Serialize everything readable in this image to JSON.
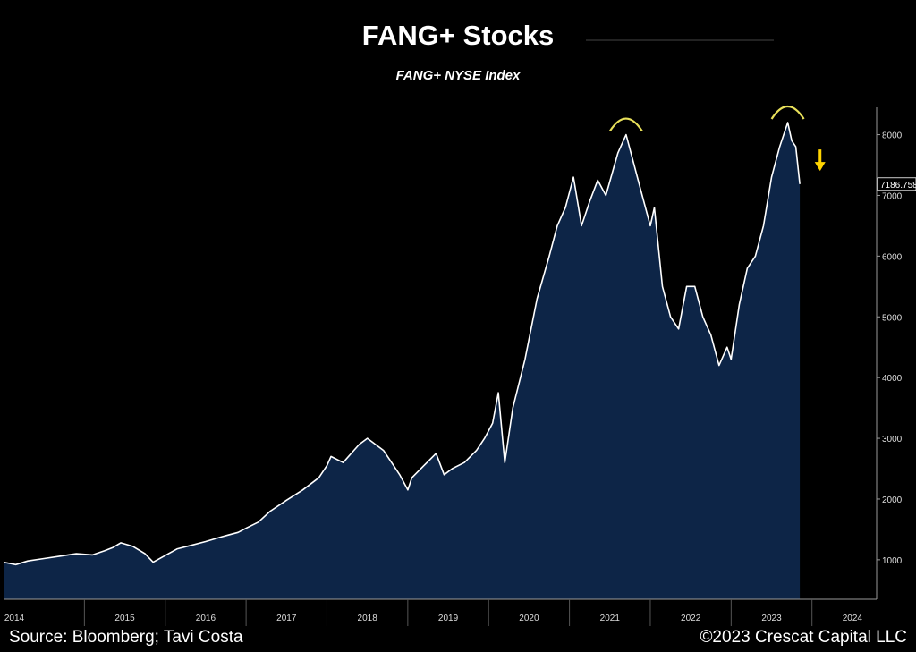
{
  "chart_data": {
    "type": "area",
    "title": "FANG+ Stocks",
    "subtitle": "FANG+ NYSE Index",
    "xlabel": "",
    "ylabel": "",
    "x_ticks": [
      "2014",
      "2015",
      "2016",
      "2017",
      "2018",
      "2019",
      "2020",
      "2021",
      "2022",
      "2023",
      "2024"
    ],
    "y_ticks": [
      1000,
      2000,
      3000,
      4000,
      5000,
      6000,
      7000,
      8000
    ],
    "ylim": [
      350,
      8450
    ],
    "xlim": [
      2014.0,
      2024.8
    ],
    "last_value_label": "7186.758",
    "grid": false,
    "series": [
      {
        "values": [
          [
            2014.0,
            960
          ],
          [
            2014.15,
            920
          ],
          [
            2014.3,
            980
          ],
          [
            2014.5,
            1020
          ],
          [
            2014.7,
            1060
          ],
          [
            2014.9,
            1100
          ],
          [
            2015.1,
            1080
          ],
          [
            2015.25,
            1150
          ],
          [
            2015.35,
            1200
          ],
          [
            2015.45,
            1280
          ],
          [
            2015.6,
            1220
          ],
          [
            2015.75,
            1100
          ],
          [
            2015.85,
            960
          ],
          [
            2016.0,
            1070
          ],
          [
            2016.15,
            1180
          ],
          [
            2016.3,
            1230
          ],
          [
            2016.5,
            1300
          ],
          [
            2016.7,
            1380
          ],
          [
            2016.9,
            1450
          ],
          [
            2017.0,
            1520
          ],
          [
            2017.15,
            1620
          ],
          [
            2017.3,
            1800
          ],
          [
            2017.5,
            1980
          ],
          [
            2017.7,
            2150
          ],
          [
            2017.9,
            2350
          ],
          [
            2018.0,
            2550
          ],
          [
            2018.05,
            2700
          ],
          [
            2018.2,
            2600
          ],
          [
            2018.3,
            2750
          ],
          [
            2018.4,
            2900
          ],
          [
            2018.5,
            3000
          ],
          [
            2018.6,
            2900
          ],
          [
            2018.7,
            2800
          ],
          [
            2018.8,
            2600
          ],
          [
            2018.9,
            2400
          ],
          [
            2019.0,
            2150
          ],
          [
            2019.05,
            2350
          ],
          [
            2019.2,
            2550
          ],
          [
            2019.35,
            2750
          ],
          [
            2019.45,
            2400
          ],
          [
            2019.55,
            2500
          ],
          [
            2019.7,
            2600
          ],
          [
            2019.85,
            2800
          ],
          [
            2019.95,
            3000
          ],
          [
            2020.05,
            3250
          ],
          [
            2020.12,
            3750
          ],
          [
            2020.2,
            2600
          ],
          [
            2020.3,
            3500
          ],
          [
            2020.45,
            4300
          ],
          [
            2020.6,
            5300
          ],
          [
            2020.75,
            6000
          ],
          [
            2020.85,
            6500
          ],
          [
            2020.95,
            6800
          ],
          [
            2021.05,
            7300
          ],
          [
            2021.15,
            6500
          ],
          [
            2021.25,
            6900
          ],
          [
            2021.35,
            7250
          ],
          [
            2021.45,
            7000
          ],
          [
            2021.6,
            7700
          ],
          [
            2021.7,
            8000
          ],
          [
            2021.8,
            7500
          ],
          [
            2021.9,
            7000
          ],
          [
            2022.0,
            6500
          ],
          [
            2022.05,
            6800
          ],
          [
            2022.15,
            5500
          ],
          [
            2022.25,
            5000
          ],
          [
            2022.35,
            4800
          ],
          [
            2022.45,
            5500
          ],
          [
            2022.55,
            5500
          ],
          [
            2022.65,
            5000
          ],
          [
            2022.75,
            4700
          ],
          [
            2022.85,
            4200
          ],
          [
            2022.95,
            4500
          ],
          [
            2023.0,
            4300
          ],
          [
            2023.1,
            5200
          ],
          [
            2023.2,
            5800
          ],
          [
            2023.3,
            6000
          ],
          [
            2023.4,
            6500
          ],
          [
            2023.5,
            7300
          ],
          [
            2023.6,
            7800
          ],
          [
            2023.7,
            8200
          ],
          [
            2023.75,
            7900
          ],
          [
            2023.8,
            7800
          ],
          [
            2023.85,
            7186.758
          ]
        ]
      }
    ],
    "annotations": [
      {
        "type": "arc",
        "label": "peak",
        "x": 2021.7,
        "value": 8000
      },
      {
        "type": "arc",
        "label": "peak",
        "x": 2023.7,
        "value": 8200
      },
      {
        "type": "down-arrow",
        "x": 2024.1,
        "value": 7550
      }
    ],
    "colors": {
      "background": "#000000",
      "area_fill": "#0d2547",
      "line": "#ffffff",
      "arc": "#e8e05a",
      "arrow": "#ffd400",
      "axis": "#9a9a9a"
    }
  },
  "footer": {
    "source": "Source: Bloomberg; Tavi Costa",
    "copyright": "©2023 Crescat Capital LLC"
  }
}
